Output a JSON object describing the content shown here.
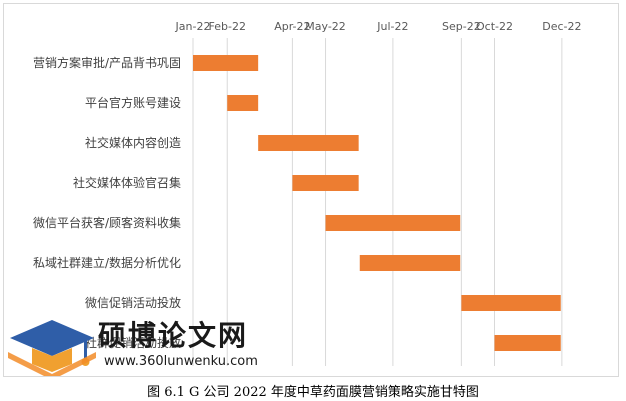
{
  "chart_data": {
    "type": "gantt",
    "x_ticks": [
      "Jan-22",
      "Feb-22",
      "Apr-22",
      "May-22",
      "Jul-22",
      "Sep-22",
      "Oct-22",
      "Dec-22"
    ],
    "x_tick_dates": [
      "2022-01-01",
      "2022-02-01",
      "2022-04-01",
      "2022-05-01",
      "2022-07-01",
      "2022-09-01",
      "2022-10-01",
      "2022-12-01"
    ],
    "xlim": [
      "2022-01-01",
      "2022-12-31"
    ],
    "grid": "vertical",
    "bar_color": "#ed7d31",
    "tasks": [
      {
        "name": "营销方案审批/产品背书巩固",
        "start": "2022-01-01",
        "end": "2022-03-01"
      },
      {
        "name": "平台官方账号建设",
        "start": "2022-02-01",
        "end": "2022-03-01"
      },
      {
        "name": "社交媒体内容创造",
        "start": "2022-03-01",
        "end": "2022-05-31"
      },
      {
        "name": "社交媒体体验官召集",
        "start": "2022-04-01",
        "end": "2022-05-31"
      },
      {
        "name": "微信平台获客/顾客资料收集",
        "start": "2022-05-01",
        "end": "2022-08-31"
      },
      {
        "name": "私域社群建立/数据分析优化",
        "start": "2022-06-01",
        "end": "2022-08-31"
      },
      {
        "name": "微信促销活动投放",
        "start": "2022-09-01",
        "end": "2022-11-30"
      },
      {
        "name": "社群促销活动投放",
        "start": "2022-10-01",
        "end": "2022-11-30"
      }
    ]
  },
  "caption": "图 6.1  G 公司 2022 年度中草药面膜营销策略实施甘特图",
  "watermark": {
    "text": "硕博论文网",
    "url": "www.360lunwenku.com"
  }
}
